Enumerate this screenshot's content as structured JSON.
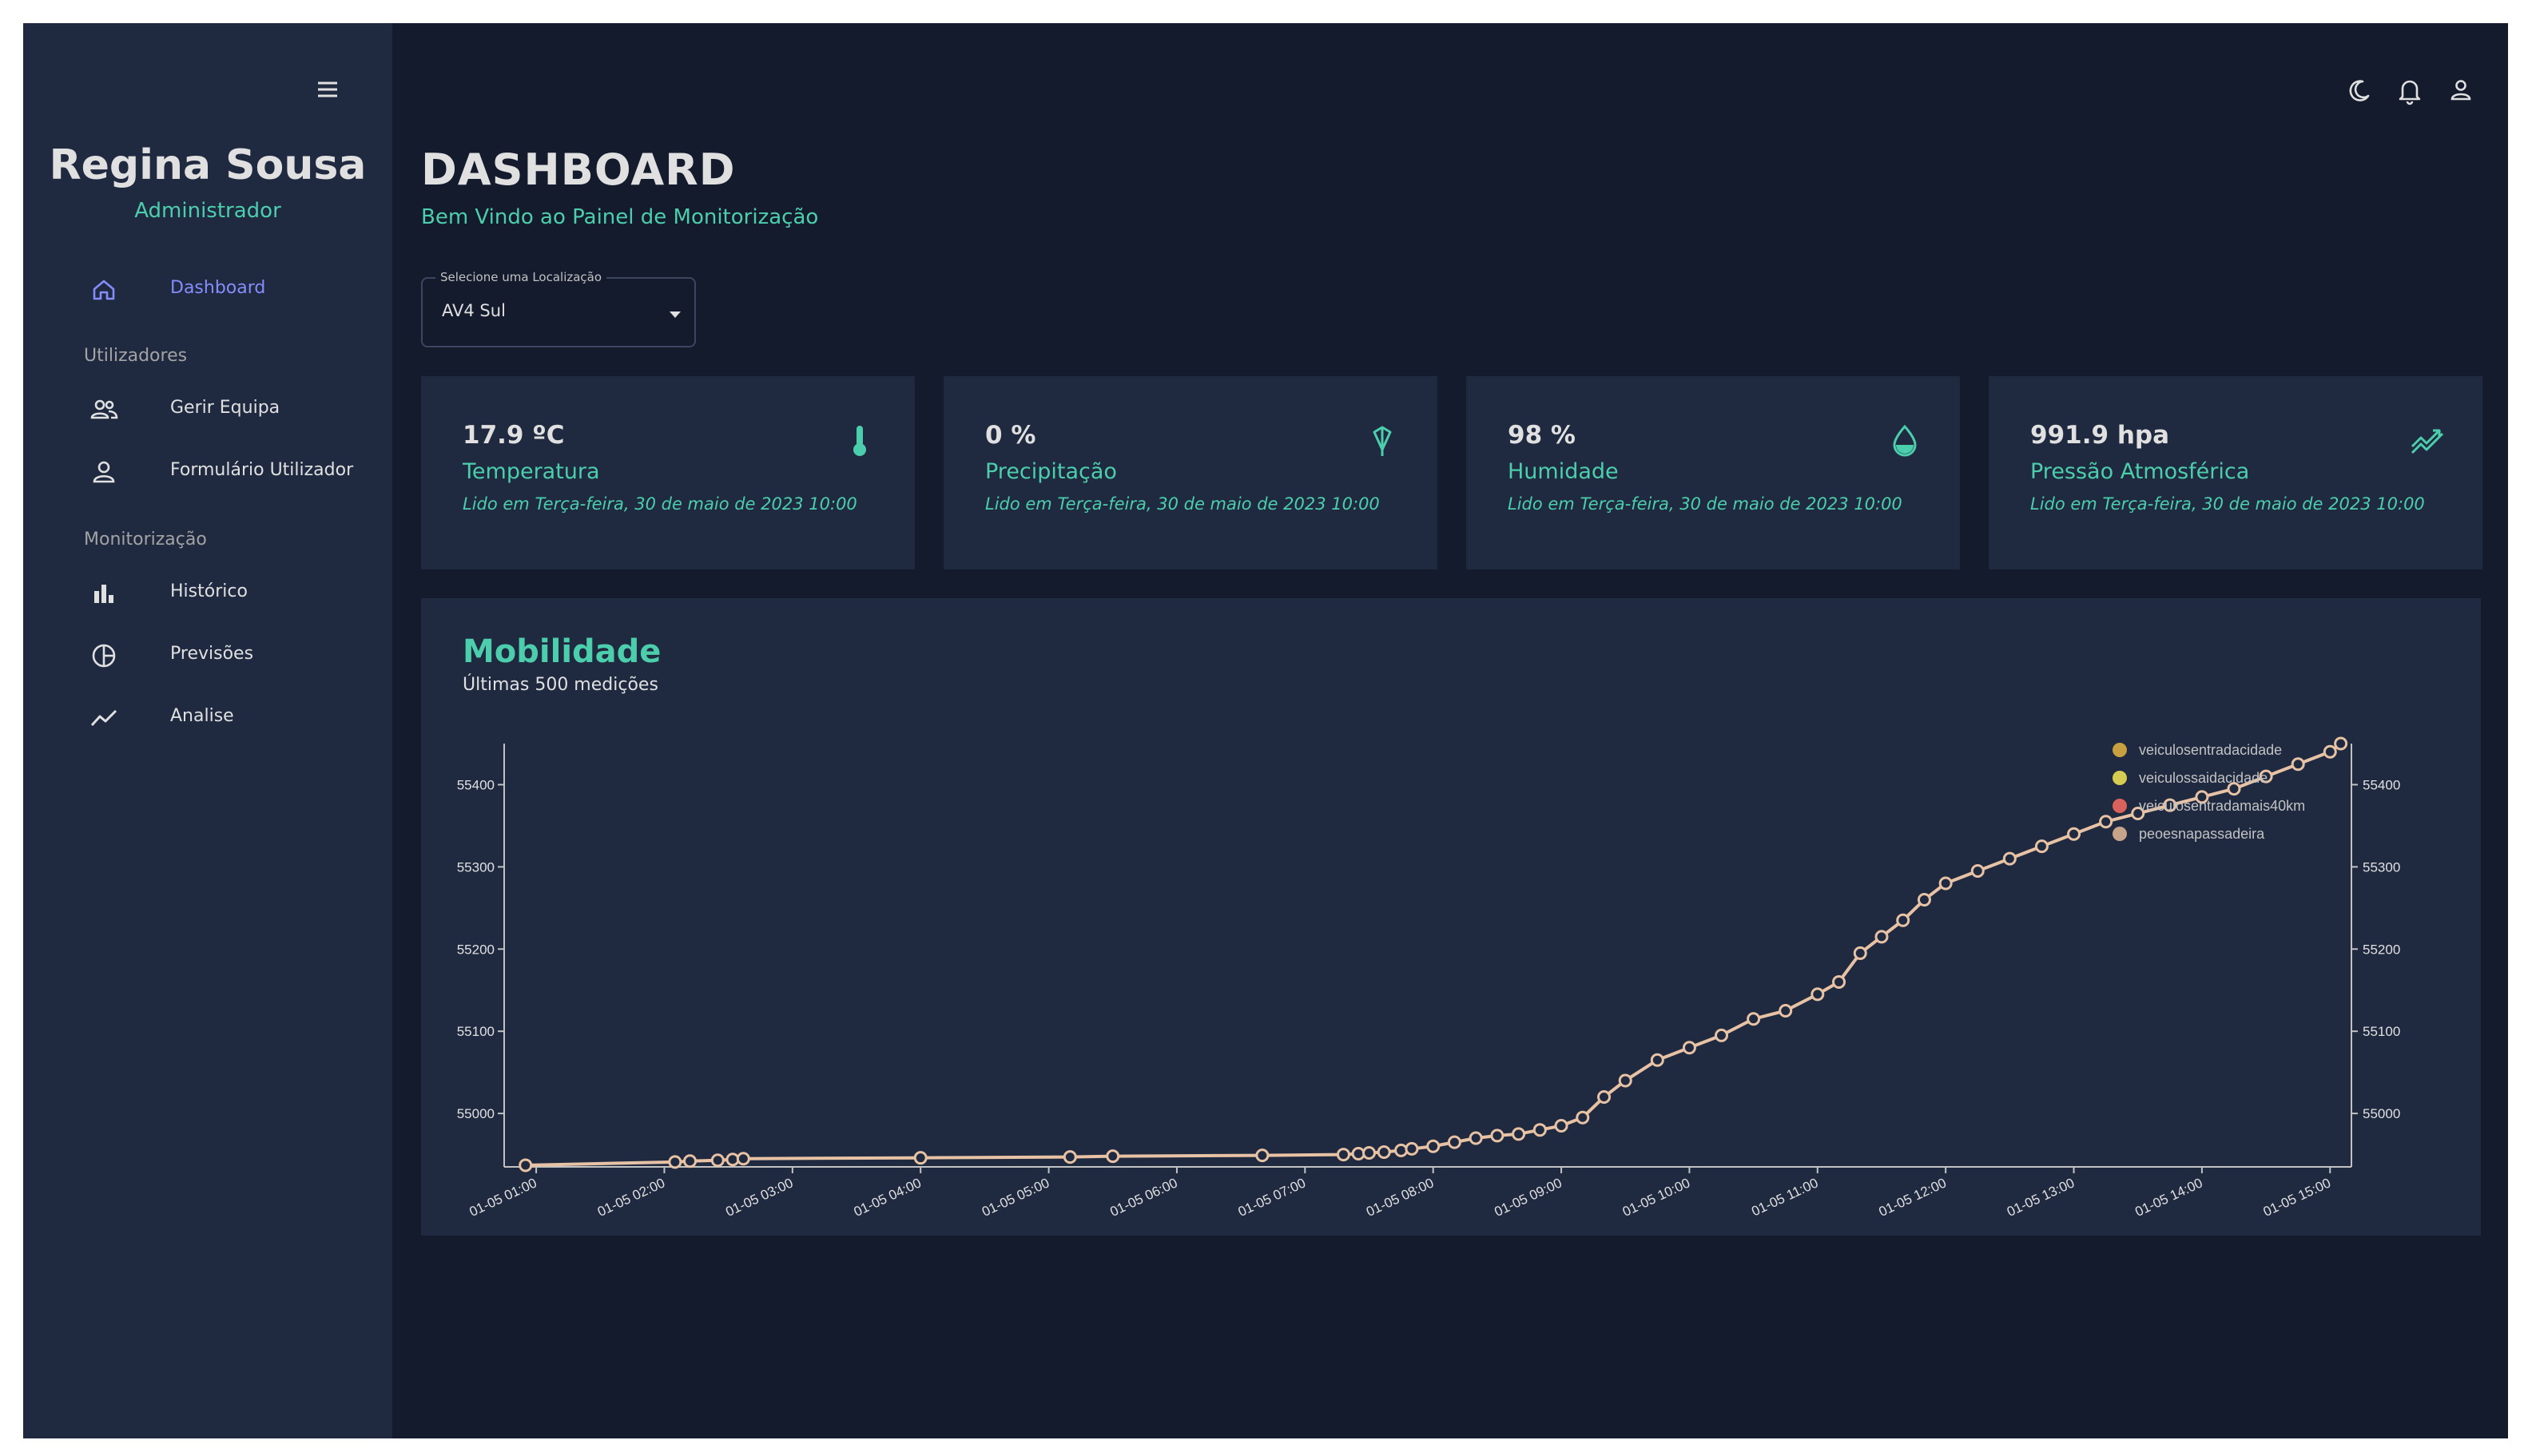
{
  "sidebar": {
    "user_name": "Regina Sousa",
    "user_role": "Administrador",
    "items": [
      {
        "label": "Dashboard",
        "icon": "home-icon",
        "active": true
      },
      {
        "label": "Gerir Equipa",
        "icon": "people-icon"
      },
      {
        "label": "Formulário Utilizador",
        "icon": "person-icon"
      },
      {
        "label": "Histórico",
        "icon": "bar-chart-icon"
      },
      {
        "label": "Previsões",
        "icon": "pie-chart-icon"
      },
      {
        "label": "Analise",
        "icon": "timeline-icon"
      }
    ],
    "sections": [
      "Utilizadores",
      "Monitorização"
    ]
  },
  "topbar": {
    "icons": [
      "dark-mode-icon",
      "notifications-icon",
      "user-icon"
    ]
  },
  "header": {
    "title": "DASHBOARD",
    "subtitle": "Bem Vindo ao Painel de Monitorização"
  },
  "location_select": {
    "label": "Selecione uma Localização",
    "value": "AV4 Sul"
  },
  "stats": [
    {
      "value": "17.9 ºC",
      "label": "Temperatura",
      "time": "Lido em Terça-feira, 30 de maio de 2023 10:00",
      "icon": "thermometer-icon"
    },
    {
      "value": "0 %",
      "label": "Precipitação",
      "time": "Lido em Terça-feira, 30 de maio de 2023 10:00",
      "icon": "umbrella-icon"
    },
    {
      "value": "98 %",
      "label": "Humidade",
      "time": "Lido em Terça-feira, 30 de maio de 2023 10:00",
      "icon": "water-drop-icon"
    },
    {
      "value": "991.9 hpa",
      "label": "Pressão Atmosférica",
      "time": "Lido em Terça-feira, 30 de maio de 2023 10:00",
      "icon": "trending-icon"
    }
  ],
  "mobility": {
    "title": "Mobilidade",
    "subtitle": "Últimas 500 medições"
  },
  "colors": {
    "accent": "#4cceac",
    "active_nav": "#868dfb",
    "background": "#141b2d",
    "panel": "#1f2a40",
    "series_line": "#e8c2a4"
  },
  "chart_data": {
    "type": "line",
    "x_ticks": [
      "01-05 01:00",
      "01-05 02:00",
      "01-05 03:00",
      "01-05 04:00",
      "01-05 05:00",
      "01-05 06:00",
      "01-05 07:00",
      "01-05 08:00",
      "01-05 09:00",
      "01-05 10:00",
      "01-05 11:00",
      "01-05 12:00",
      "01-05 13:00",
      "01-05 14:00",
      "01-05 15:00"
    ],
    "y_ticks": [
      55000,
      55100,
      55200,
      55300,
      55400
    ],
    "ylim": [
      54935,
      55450
    ],
    "x_range": [
      "01-05 00:45",
      "01-05 15:10"
    ],
    "legend": [
      "veiculosentradacidade",
      "veiculossaidacidade",
      "veiculosentradamais40km",
      "peoesnapassadeira"
    ],
    "legend_colors": [
      "#c9a041",
      "#d6cc52",
      "#d9625c",
      "#c6a48c"
    ],
    "legend_position": "top-right",
    "grid": false,
    "series": [
      {
        "name": "veiculosentradacidade",
        "x": [
          "01-05 00:55",
          "01-05 02:05",
          "01-05 02:12",
          "01-05 02:25",
          "01-05 02:32",
          "01-05 02:37",
          "01-05 04:00",
          "01-05 05:10",
          "01-05 05:30",
          "01-05 06:40",
          "01-05 07:18",
          "01-05 07:25",
          "01-05 07:30",
          "01-05 07:37",
          "01-05 07:45",
          "01-05 07:50",
          "01-05 08:00",
          "01-05 08:10",
          "01-05 08:20",
          "01-05 08:30",
          "01-05 08:40",
          "01-05 08:50",
          "01-05 09:00",
          "01-05 09:10",
          "01-05 09:20",
          "01-05 09:30",
          "01-05 09:45",
          "01-05 10:00",
          "01-05 10:15",
          "01-05 10:30",
          "01-05 10:45",
          "01-05 11:00",
          "01-05 11:10",
          "01-05 11:20",
          "01-05 11:30",
          "01-05 11:40",
          "01-05 11:50",
          "01-05 12:00",
          "01-05 12:15",
          "01-05 12:30",
          "01-05 12:45",
          "01-05 13:00",
          "01-05 13:15",
          "01-05 13:30",
          "01-05 13:45",
          "01-05 14:00",
          "01-05 14:15",
          "01-05 14:30",
          "01-05 14:45",
          "01-05 15:00",
          "01-05 15:05"
        ],
        "y": [
          54937,
          54941,
          54942,
          54943,
          54944,
          54945,
          54946,
          54947,
          54948,
          54949,
          54950,
          54951,
          54952,
          54953,
          54955,
          54957,
          54960,
          54965,
          54970,
          54973,
          54975,
          54980,
          54985,
          54995,
          55020,
          55040,
          55065,
          55080,
          55095,
          55115,
          55125,
          55145,
          55160,
          55195,
          55215,
          55235,
          55260,
          55280,
          55295,
          55310,
          55325,
          55340,
          55355,
          55365,
          55375,
          55385,
          55395,
          55410,
          55425,
          55440,
          55450
        ]
      }
    ]
  }
}
